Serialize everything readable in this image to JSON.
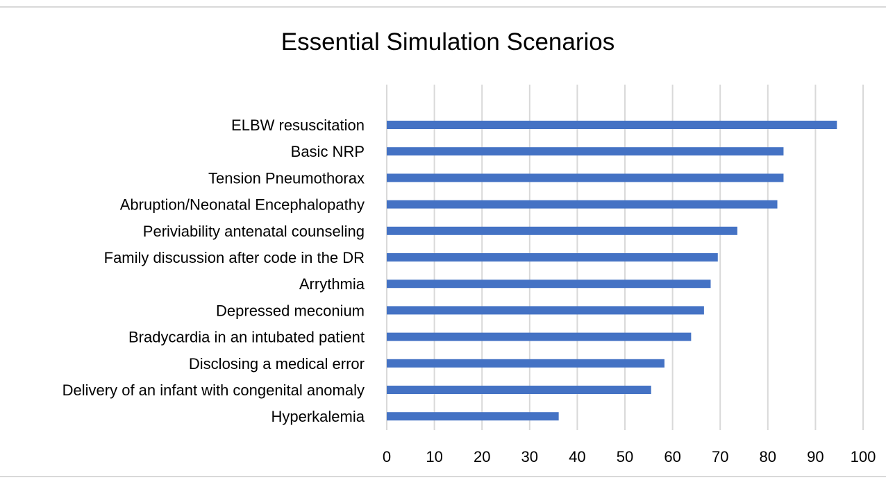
{
  "chart_data": {
    "type": "bar",
    "orientation": "horizontal",
    "title": "Essential Simulation Scenarios",
    "xlabel": "",
    "ylabel": "",
    "categories": [
      "ELBW resuscitation",
      "Basic NRP",
      "Tension Pneumothorax",
      "Abruption/Neonatal Encephalopathy",
      "Periviability antenatal counseling",
      "Family discussion after code in the DR",
      "Arrythmia",
      "Depressed meconium",
      "Bradycardia in an intubated patient",
      "Disclosing a medical error",
      "Delivery of an infant with congenital anomaly",
      "Hyperkalemia"
    ],
    "values": [
      94.5,
      83.3,
      83.3,
      82.0,
      73.6,
      69.5,
      68.0,
      66.6,
      63.9,
      58.3,
      55.5,
      36.1
    ],
    "xlim": [
      0,
      100
    ],
    "xticks": [
      0,
      10,
      20,
      30,
      40,
      50,
      60,
      70,
      80,
      90,
      100
    ],
    "grid": "vertical",
    "legend": "none",
    "bar_color": "#4472c4"
  }
}
